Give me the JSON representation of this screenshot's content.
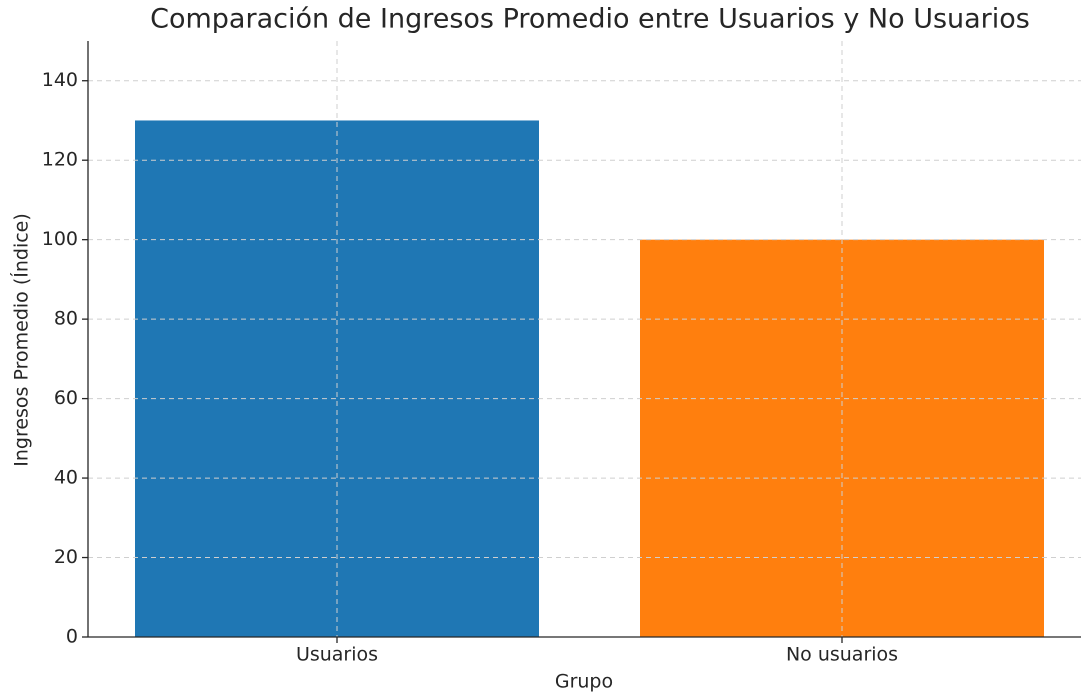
{
  "chart_data": {
    "type": "bar",
    "title": "Comparación de Ingresos Promedio entre Usuarios y No Usuarios",
    "xlabel": "Grupo",
    "ylabel": "Ingresos Promedio (Índice)",
    "categories": [
      "Usuarios",
      "No usuarios"
    ],
    "values": [
      130,
      100
    ],
    "colors": [
      "#1f77b4",
      "#ff7f0e"
    ],
    "ylim": [
      0,
      150
    ],
    "yticks": [
      0,
      20,
      40,
      60,
      80,
      100,
      120,
      140
    ],
    "grid": true
  }
}
